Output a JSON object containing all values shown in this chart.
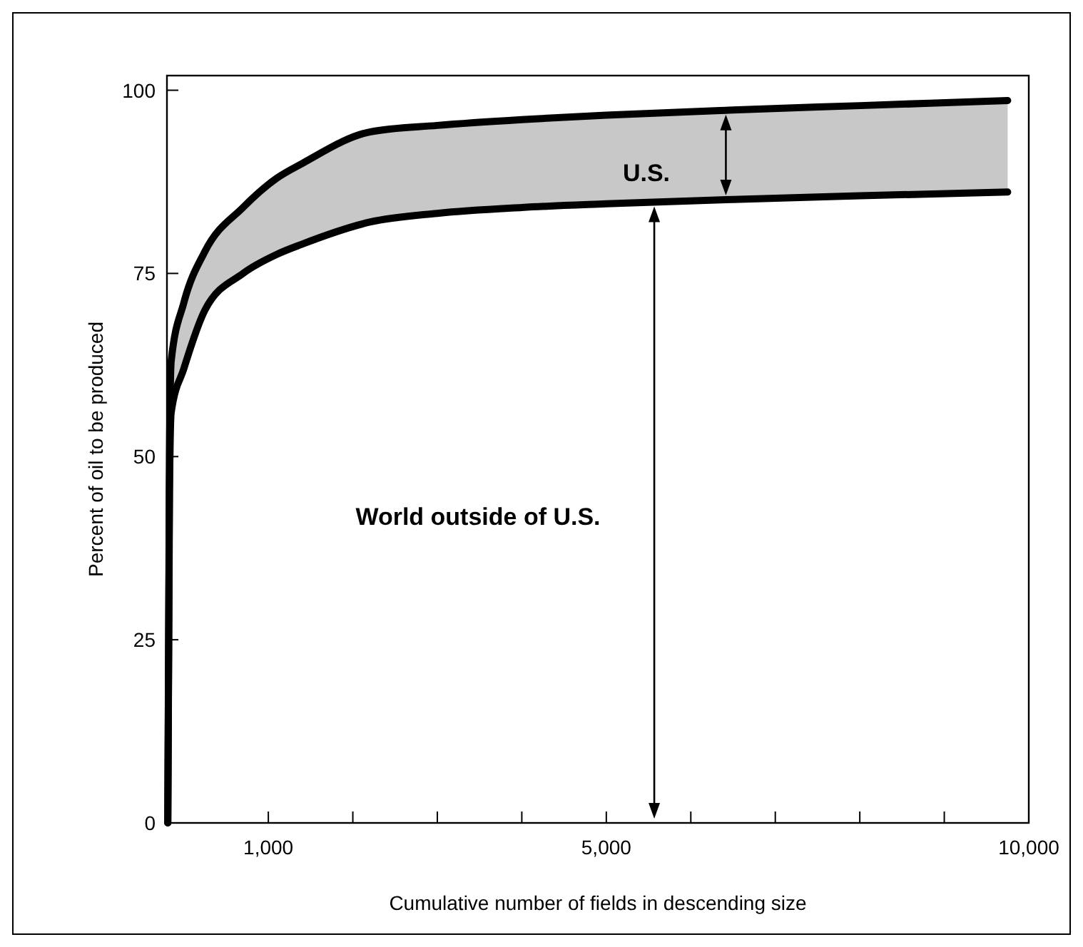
{
  "chart_data": {
    "type": "line",
    "xlabel": "Cumulative number of fields in descending size",
    "ylabel": "Percent of oil to be produced",
    "x": [
      -190,
      -170,
      -150,
      0,
      250,
      700,
      1100,
      1400,
      2200,
      3000,
      4000,
      5000,
      6500,
      8000,
      9750
    ],
    "series": [
      {
        "color": "#000000",
        "values": [
          0,
          45,
          56,
          62,
          70,
          75,
          77.6,
          79,
          82,
          83.2,
          84,
          84.5,
          85.1,
          85.6,
          86.1
        ]
      },
      {
        "color": "#000000",
        "values": [
          0,
          50,
          63,
          71,
          78,
          84,
          88,
          90,
          94.3,
          95.2,
          96,
          96.6,
          97.3,
          97.9,
          98.6
        ]
      }
    ],
    "xlim": [
      -200,
      10000
    ],
    "xticks": [
      {
        "value": 1000,
        "label": "1,000"
      },
      {
        "value": 2000,
        "label": null
      },
      {
        "value": 3000,
        "label": null
      },
      {
        "value": 4000,
        "label": null
      },
      {
        "value": 5000,
        "label": "5,000"
      },
      {
        "value": 6000,
        "label": null
      },
      {
        "value": 7000,
        "label": null
      },
      {
        "value": 8000,
        "label": null
      },
      {
        "value": 9000,
        "label": null
      },
      {
        "value": 10000,
        "label": "10,000"
      }
    ],
    "ylim": [
      0,
      102
    ],
    "yticks": [
      0,
      25,
      50,
      75,
      100
    ],
    "grid": false,
    "marker": "none",
    "line_style": "solid",
    "annotations": [
      "U.S.",
      "World outside of U.S."
    ]
  }
}
